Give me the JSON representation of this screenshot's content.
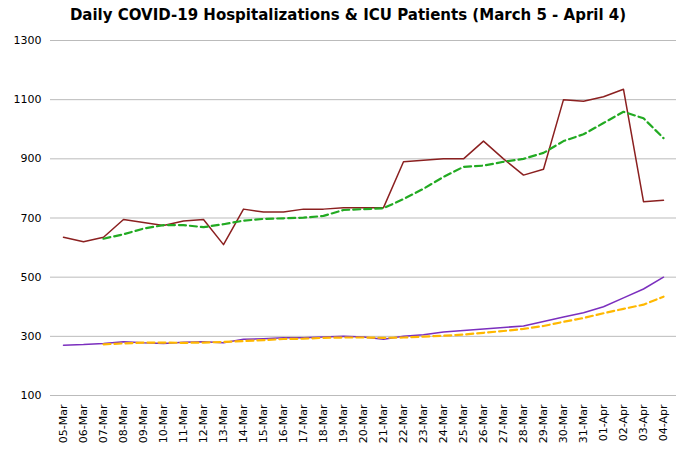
{
  "chart_data": {
    "type": "line",
    "title": "Daily COVID-19 Hospitalizations & ICU Patients (March 5 - April 4)",
    "categories": [
      "05-Mar",
      "06-Mar",
      "07-Mar",
      "08-Mar",
      "09-Mar",
      "10-Mar",
      "11-Mar",
      "12-Mar",
      "13-Mar",
      "14-Mar",
      "15-Mar",
      "16-Mar",
      "17-Mar",
      "18-Mar",
      "19-Mar",
      "20-Mar",
      "21-Mar",
      "22-Mar",
      "23-Mar",
      "24-Mar",
      "25-Mar",
      "26-Mar",
      "27-Mar",
      "28-Mar",
      "29-Mar",
      "30-Mar",
      "31-Mar",
      "01-Apr",
      "02-Apr",
      "03-Apr",
      "04-Apr"
    ],
    "series": [
      {
        "color": "#8B2020",
        "line_style": "solid",
        "values": [
          635,
          620,
          635,
          695,
          685,
          675,
          690,
          695,
          610,
          730,
          720,
          720,
          730,
          730,
          735,
          735,
          735,
          890,
          895,
          900,
          900,
          960,
          900,
          845,
          865,
          1100,
          1095,
          1110,
          1135,
          755,
          760
        ]
      },
      {
        "color": "#22AA22",
        "line_style": "dashed",
        "values": [
          null,
          null,
          630,
          645,
          664,
          676,
          676,
          669,
          679,
          691,
          697,
          699,
          701,
          707,
          727,
          730,
          733,
          764,
          799,
          839,
          873,
          877,
          890,
          900,
          920,
          960,
          983,
          1021,
          1059,
          1037,
          970
        ]
      },
      {
        "color": "#7B2FBE",
        "line_style": "solid",
        "values": [
          270,
          272,
          276,
          282,
          278,
          276,
          280,
          282,
          278,
          290,
          292,
          295,
          295,
          298,
          300,
          298,
          290,
          300,
          305,
          315,
          320,
          325,
          330,
          335,
          350,
          365,
          380,
          400,
          430,
          460,
          500
        ]
      },
      {
        "color": "#FFB800",
        "line_style": "dashed",
        "values": [
          null,
          null,
          273,
          276,
          279,
          279,
          278,
          279,
          281,
          284,
          287,
          291,
          292,
          295,
          296,
          296,
          295,
          296,
          299,
          302,
          306,
          312,
          318,
          325,
          335,
          349,
          362,
          378,
          393,
          407,
          434
        ]
      }
    ],
    "ylim": [
      100,
      1300
    ],
    "yticks": [
      100,
      300,
      500,
      700,
      900,
      1100,
      1300
    ],
    "grid": true
  }
}
